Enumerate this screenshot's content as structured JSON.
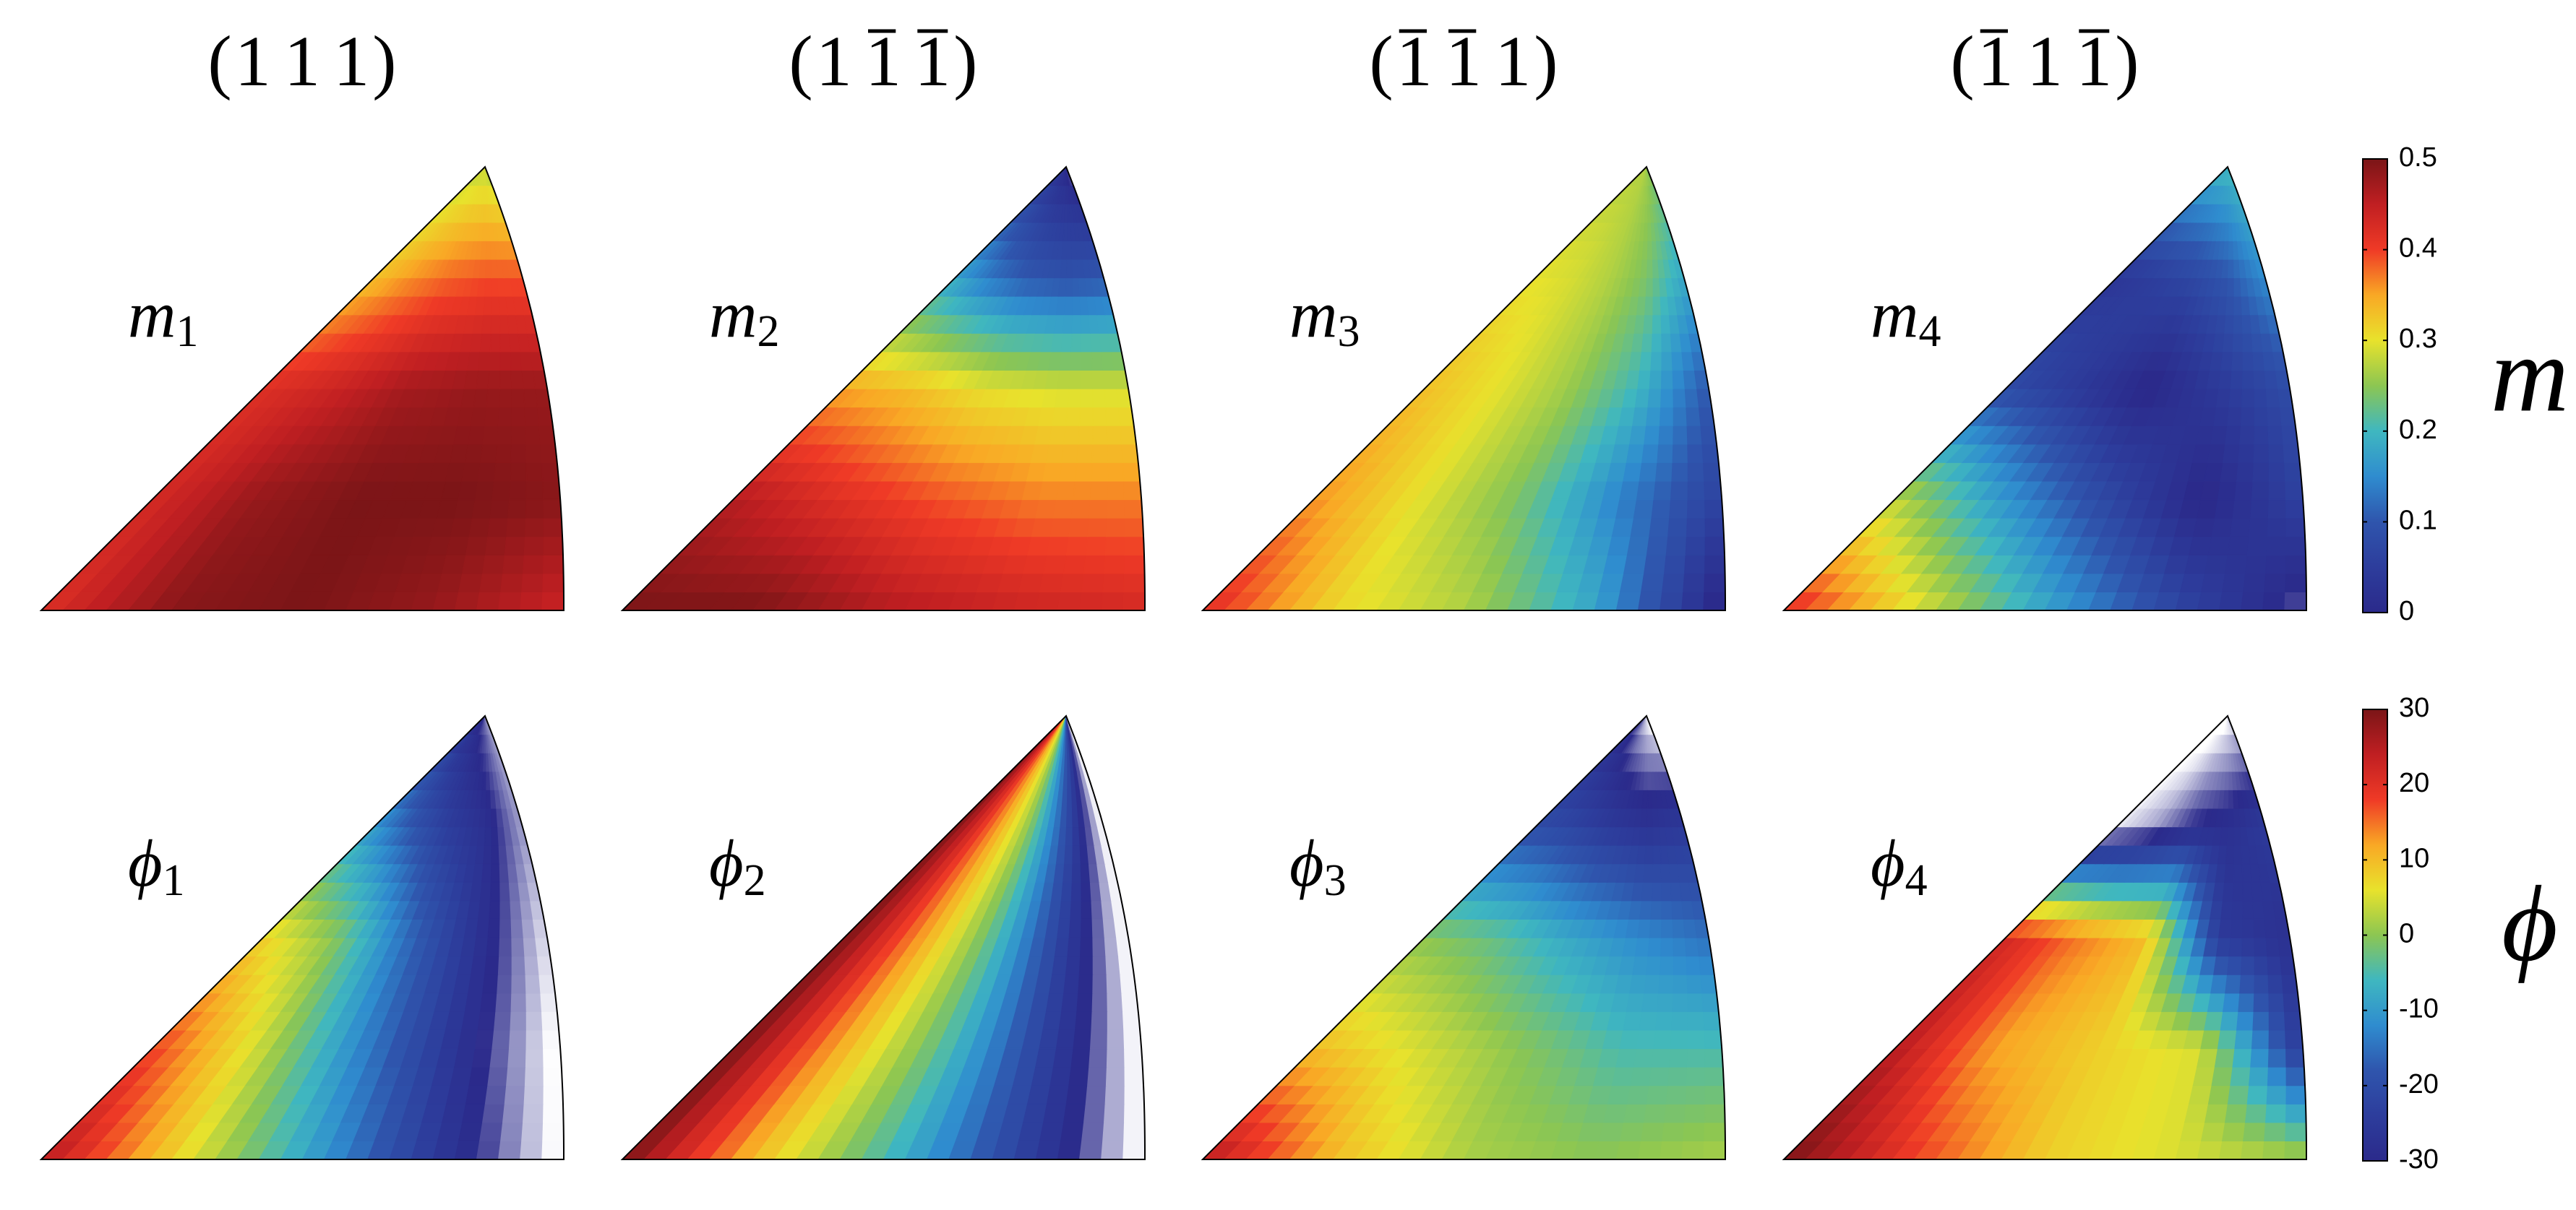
{
  "column_titles": [
    {
      "open": "(",
      "indices": [
        {
          "text": "1",
          "bar": false
        },
        {
          "text": "1",
          "bar": false
        },
        {
          "text": "1",
          "bar": false
        }
      ],
      "close": ")"
    },
    {
      "open": "(",
      "indices": [
        {
          "text": "1",
          "bar": false
        },
        {
          "text": "1",
          "bar": true
        },
        {
          "text": "1",
          "bar": true
        }
      ],
      "close": ")"
    },
    {
      "open": "(",
      "indices": [
        {
          "text": "1",
          "bar": true
        },
        {
          "text": "1",
          "bar": true
        },
        {
          "text": "1",
          "bar": false
        }
      ],
      "close": ")"
    },
    {
      "open": "(",
      "indices": [
        {
          "text": "1",
          "bar": true
        },
        {
          "text": "1",
          "bar": false
        },
        {
          "text": "1",
          "bar": true
        }
      ],
      "close": ")"
    }
  ],
  "colormap": [
    "#2b2a8b",
    "#2d3d9c",
    "#2f55ad",
    "#2f8ccf",
    "#3fb7c0",
    "#8cc652",
    "#e8e22c",
    "#f9a825",
    "#ef3a26",
    "#c01f22",
    "#7b1517"
  ],
  "under_color": "#ffffff",
  "colorbars": [
    {
      "symbol": "m",
      "lim": [
        0,
        0.5
      ],
      "ticks": [
        0,
        0.1,
        0.2,
        0.3,
        0.4,
        0.5
      ]
    },
    {
      "symbol": "ϕ",
      "lim": [
        -30,
        30
      ],
      "ticks": [
        -30,
        -20,
        -10,
        0,
        10,
        20,
        30
      ]
    }
  ],
  "chart_data": [
    {
      "type": "heatmap",
      "symbol": "m",
      "index": "1",
      "colorbar": 0,
      "values": [
        [
          0.42,
          0.49,
          0.5,
          0.48,
          0.44
        ],
        [
          0.43,
          0.48,
          0.5,
          0.5,
          0.49
        ],
        [
          0.42,
          0.44,
          0.47,
          0.48,
          0.48
        ],
        [
          0.33,
          0.36,
          0.38,
          0.39,
          0.39
        ],
        [
          0.28,
          0.28,
          0.28,
          0.28,
          0.27
        ]
      ]
    },
    {
      "type": "heatmap",
      "symbol": "m",
      "index": "2",
      "colorbar": 0,
      "values": [
        [
          0.5,
          0.5,
          0.46,
          0.44,
          0.43
        ],
        [
          0.46,
          0.42,
          0.39,
          0.37,
          0.37
        ],
        [
          0.35,
          0.33,
          0.3,
          0.29,
          0.29
        ],
        [
          0.18,
          0.13,
          0.1,
          0.09,
          0.1
        ],
        [
          0.03,
          0.02,
          0.01,
          0,
          -0.02
        ]
      ]
    },
    {
      "type": "heatmap",
      "symbol": "m",
      "index": "3",
      "colorbar": 0,
      "values": [
        [
          0.42,
          0.31,
          0.27,
          0.18,
          -0.02
        ],
        [
          0.36,
          0.3,
          0.24,
          0.14,
          0.06
        ],
        [
          0.33,
          0.3,
          0.26,
          0.2,
          0.1
        ],
        [
          0.3,
          0.29,
          0.27,
          0.24,
          0.18
        ],
        [
          0.27,
          0.27,
          0.27,
          0.26,
          0.25
        ]
      ]
    },
    {
      "type": "heatmap",
      "symbol": "m",
      "index": "4",
      "colorbar": 0,
      "values": [
        [
          0.42,
          0.3,
          0.18,
          0.07,
          -0.02
        ],
        [
          0.28,
          0.17,
          0.08,
          -0.01,
          0.06
        ],
        [
          0.08,
          0.04,
          -0.01,
          0.04,
          0.08
        ],
        [
          0.03,
          0.05,
          0.07,
          0.1,
          0.15
        ],
        [
          0.2,
          0.2,
          0.2,
          0.2,
          0.2
        ]
      ]
    },
    {
      "type": "heatmap",
      "symbol": "ϕ",
      "index": "1",
      "colorbar": 1,
      "values": [
        [
          25,
          8,
          -8,
          -25,
          -40
        ],
        [
          18,
          5,
          -12,
          -27,
          -40
        ],
        [
          8,
          0,
          -15,
          -27,
          -38
        ],
        [
          -10,
          -18,
          -24,
          -28,
          -35
        ],
        [
          -28,
          -30,
          -31,
          -33,
          -35
        ]
      ]
    },
    {
      "type": "heatmap",
      "symbol": "ϕ",
      "index": "2",
      "colorbar": 1,
      "values": [
        [
          30,
          10,
          -5,
          -22,
          -40
        ],
        [
          30,
          12,
          -3,
          -22,
          -40
        ],
        [
          30,
          14,
          -2,
          -22,
          -40
        ],
        [
          30,
          15,
          0,
          -20,
          -40
        ],
        [
          30,
          15,
          0,
          -20,
          -40
        ]
      ]
    },
    {
      "type": "heatmap",
      "symbol": "ϕ",
      "index": "3",
      "colorbar": 1,
      "values": [
        [
          25,
          10,
          2,
          0,
          2
        ],
        [
          10,
          5,
          0,
          -5,
          -5
        ],
        [
          0,
          -3,
          -8,
          -12,
          -15
        ],
        [
          -20,
          -22,
          -25,
          -27,
          -25
        ],
        [
          -30,
          -33,
          -36,
          -38,
          -40
        ]
      ]
    },
    {
      "type": "heatmap",
      "symbol": "ϕ",
      "index": "4",
      "colorbar": 1,
      "values": [
        [
          30,
          18,
          8,
          5,
          2
        ],
        [
          25,
          12,
          8,
          5,
          -25
        ],
        [
          22,
          15,
          10,
          -25,
          -28
        ],
        [
          -38,
          -35,
          -30,
          -28,
          -25
        ],
        [
          -40,
          -40,
          -40,
          -39,
          -38
        ]
      ]
    }
  ]
}
